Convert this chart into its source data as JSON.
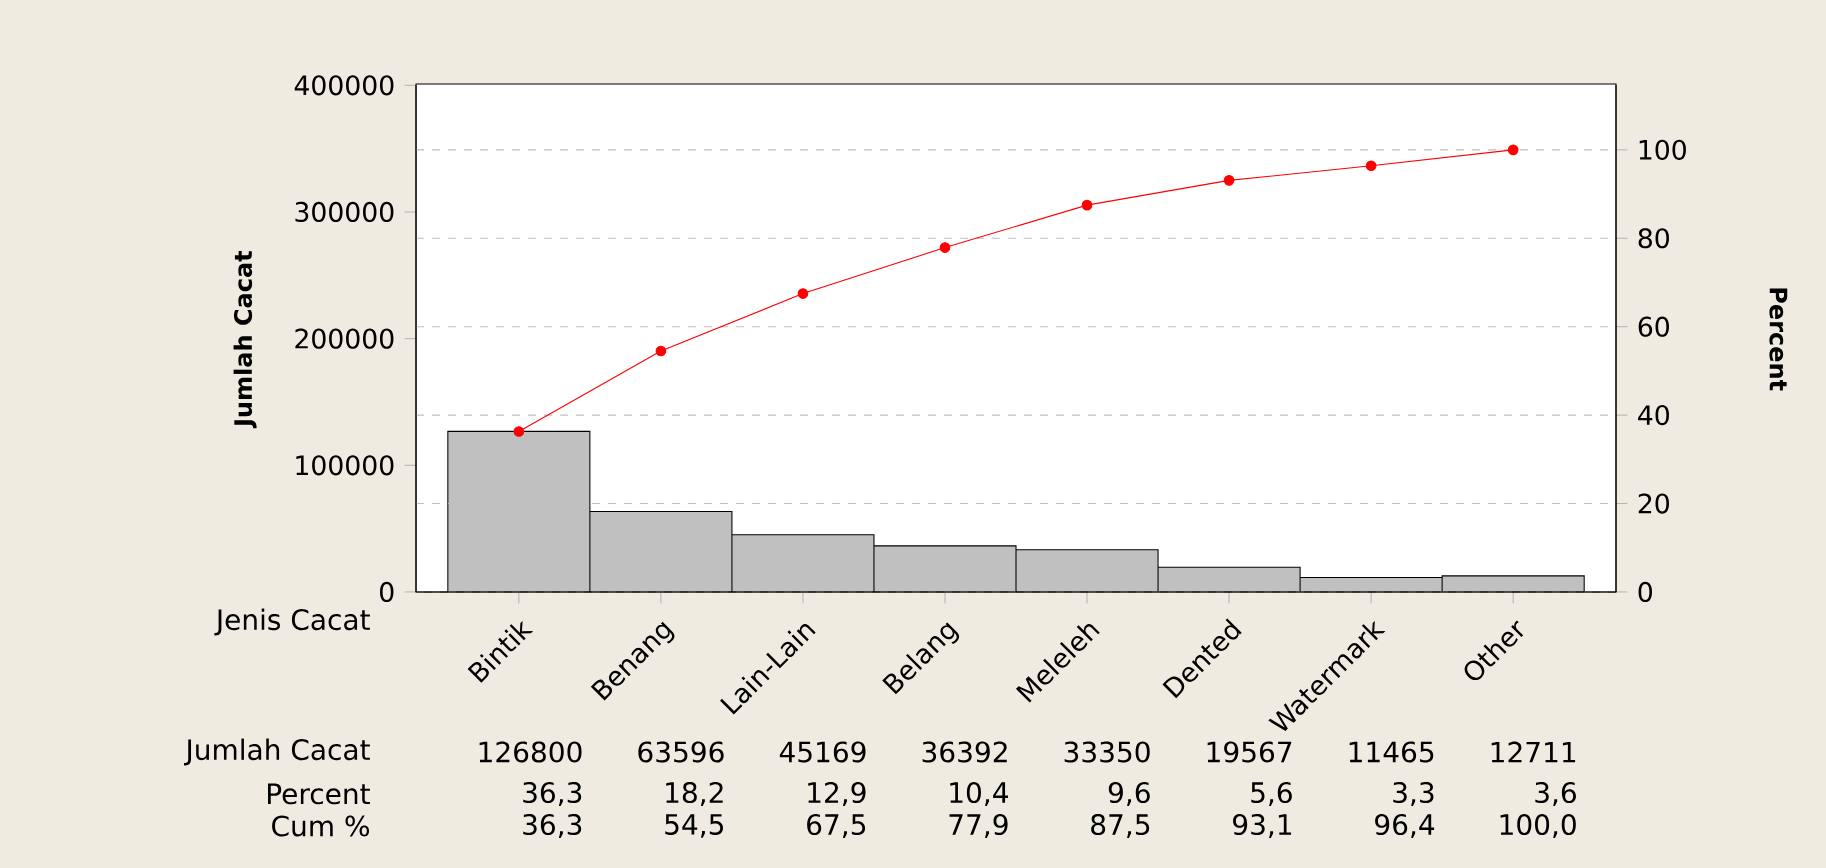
{
  "chart_data": {
    "type": "bar",
    "xlabel": "Jenis Cacat",
    "ylabel": "Jumlah Cacat",
    "y2label": "Percent",
    "categories": [
      "Bintik",
      "Benang",
      "Lain-Lain",
      "Belang",
      "Meleleh",
      "Dented",
      "Watermark",
      "Other"
    ],
    "series": [
      {
        "color": "#c0c0c0",
        "values": [
          126800,
          63596,
          45169,
          36392,
          33350,
          19567,
          11465,
          12711
        ]
      },
      {
        "type": "line",
        "axis": "y2",
        "color": "#ff0000",
        "marker": "circle",
        "values": [
          36.3,
          54.5,
          67.5,
          77.9,
          87.5,
          93.1,
          96.4,
          100.0
        ],
        "value_labels": [
          "36,3",
          "54,5",
          "67,5",
          "77,9",
          "87,5",
          "93,1",
          "96,4",
          "100,0"
        ]
      }
    ],
    "data_labels": true,
    "ylim": [
      0,
      400000
    ],
    "yticks": [
      0,
      100000,
      200000,
      300000,
      400000
    ],
    "y2lim": [
      0,
      114.6
    ],
    "y2ticks": [
      0,
      20,
      40,
      60,
      80,
      100
    ],
    "grid": "y2",
    "annotations": [
      "Jumlah Cacat",
      "Percent",
      "36,3",
      "18,2",
      "12,9",
      "10,4",
      "9,6",
      "5,6",
      "3,3",
      "3,6",
      "Cum %"
    ]
  }
}
